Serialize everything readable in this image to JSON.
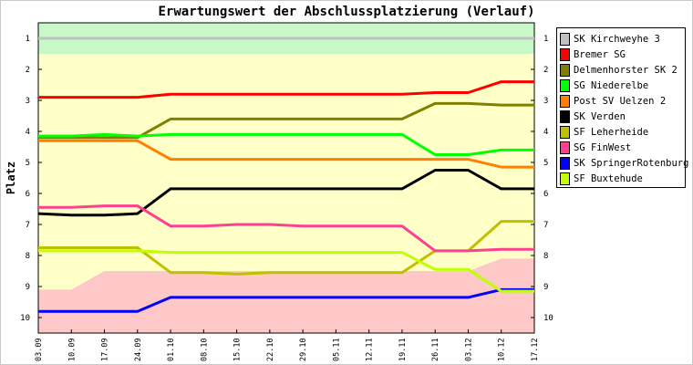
{
  "chart_data": {
    "type": "line",
    "title": "Erwartungswert der Abschlussplatzierung (Verlauf)",
    "ylabel": "Platz",
    "xlabel": "",
    "x": [
      "03.09",
      "10.09",
      "17.09",
      "24.09",
      "01.10",
      "08.10",
      "15.10",
      "22.10",
      "29.10",
      "05.11",
      "12.11",
      "19.11",
      "26.11",
      "03.12",
      "10.12",
      "17.12"
    ],
    "ylim": [
      10.5,
      0.5
    ],
    "yticks": [
      1,
      2,
      3,
      4,
      5,
      6,
      7,
      8,
      9,
      10
    ],
    "grid": false,
    "legend_position": "right",
    "bands": [
      {
        "color": "#c8f7c8",
        "top": [
          0.5,
          0.5,
          0.5,
          0.5,
          0.5,
          0.5,
          0.5,
          0.5,
          0.5,
          0.5,
          0.5,
          0.5,
          0.5,
          0.5,
          0.5,
          0.5
        ],
        "bottom": [
          1.5,
          1.5,
          1.5,
          1.5,
          1.5,
          1.5,
          1.5,
          1.5,
          1.5,
          1.5,
          1.5,
          1.5,
          1.5,
          1.5,
          1.5,
          1.5
        ]
      },
      {
        "color": "#ffffc8",
        "top": [
          1.5,
          1.5,
          1.5,
          1.5,
          1.5,
          1.5,
          1.5,
          1.5,
          1.5,
          1.5,
          1.5,
          1.5,
          1.5,
          1.5,
          1.5,
          1.5
        ],
        "bottom": [
          9.1,
          9.1,
          8.5,
          8.5,
          8.5,
          8.5,
          8.5,
          8.5,
          8.5,
          8.5,
          8.5,
          8.5,
          8.5,
          8.5,
          8.1,
          8.1
        ]
      },
      {
        "color": "#ffc8c8",
        "top": [
          9.1,
          9.1,
          8.5,
          8.5,
          8.5,
          8.5,
          8.5,
          8.5,
          8.5,
          8.5,
          8.5,
          8.5,
          8.5,
          8.5,
          8.1,
          8.1
        ],
        "bottom": [
          10.5,
          10.5,
          10.5,
          10.5,
          10.5,
          10.5,
          10.5,
          10.5,
          10.5,
          10.5,
          10.5,
          10.5,
          10.5,
          10.5,
          10.5,
          10.5
        ]
      }
    ],
    "series": [
      {
        "name": "SK Kirchweyhe 3",
        "color": "#c0c0c0",
        "values": [
          1,
          1,
          1,
          1,
          1,
          1,
          1,
          1,
          1,
          1,
          1,
          1,
          1,
          1,
          1,
          1
        ]
      },
      {
        "name": "Bremer SG",
        "color": "#ff0000",
        "values": [
          2.9,
          2.9,
          2.9,
          2.9,
          2.8,
          2.8,
          2.8,
          2.8,
          2.8,
          2.8,
          2.8,
          2.8,
          2.75,
          2.75,
          2.4,
          2.4
        ]
      },
      {
        "name": "Delmenhorster SK 2",
        "color": "#808000",
        "values": [
          4.2,
          4.2,
          4.2,
          4.2,
          3.6,
          3.6,
          3.6,
          3.6,
          3.6,
          3.6,
          3.6,
          3.6,
          3.1,
          3.1,
          3.15,
          3.15
        ]
      },
      {
        "name": "SG Niederelbe",
        "color": "#00ff00",
        "values": [
          4.15,
          4.15,
          4.1,
          4.15,
          4.1,
          4.1,
          4.1,
          4.1,
          4.1,
          4.1,
          4.1,
          4.1,
          4.75,
          4.75,
          4.6,
          4.6
        ]
      },
      {
        "name": "Post SV Uelzen 2",
        "color": "#ff8000",
        "values": [
          4.3,
          4.3,
          4.3,
          4.3,
          4.9,
          4.9,
          4.9,
          4.9,
          4.9,
          4.9,
          4.9,
          4.9,
          4.9,
          4.9,
          5.15,
          5.15
        ]
      },
      {
        "name": "SK Verden",
        "color": "#000000",
        "values": [
          6.65,
          6.7,
          6.7,
          6.65,
          5.85,
          5.85,
          5.85,
          5.85,
          5.85,
          5.85,
          5.85,
          5.85,
          5.25,
          5.25,
          5.85,
          5.85
        ]
      },
      {
        "name": "SF Leherheide",
        "color": "#c0c000",
        "values": [
          7.75,
          7.75,
          7.75,
          7.75,
          8.55,
          8.55,
          8.6,
          8.55,
          8.55,
          8.55,
          8.55,
          8.55,
          7.85,
          7.85,
          6.9,
          6.9
        ]
      },
      {
        "name": "SG FinWest",
        "color": "#ff4090",
        "values": [
          6.45,
          6.45,
          6.4,
          6.4,
          7.05,
          7.05,
          7.0,
          7.0,
          7.05,
          7.05,
          7.05,
          7.05,
          7.85,
          7.85,
          7.8,
          7.8
        ]
      },
      {
        "name": "SK SpringerRotenburg",
        "color": "#0000ff",
        "values": [
          9.8,
          9.8,
          9.8,
          9.8,
          9.35,
          9.35,
          9.35,
          9.35,
          9.35,
          9.35,
          9.35,
          9.35,
          9.35,
          9.35,
          9.1,
          9.1
        ]
      },
      {
        "name": "SF Buxtehude",
        "color": "#c0ff00",
        "values": [
          7.85,
          7.85,
          7.85,
          7.85,
          7.9,
          7.9,
          7.9,
          7.9,
          7.9,
          7.9,
          7.9,
          7.9,
          8.45,
          8.45,
          9.15,
          9.15
        ]
      }
    ]
  }
}
